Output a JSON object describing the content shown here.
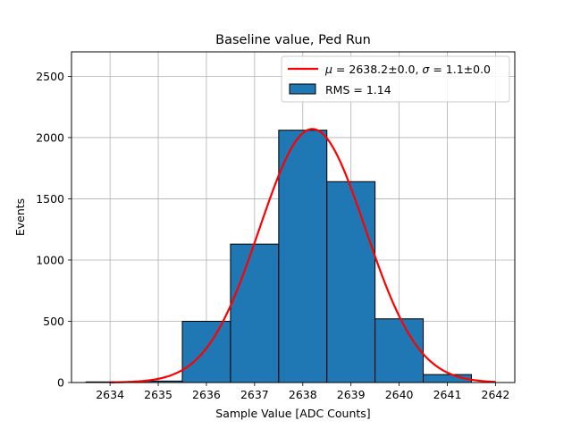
{
  "chart_data": {
    "type": "bar",
    "title": "Baseline value, Ped Run",
    "xlabel": "Sample Value [ADC Counts]",
    "ylabel": "Events",
    "xlim": [
      2633.2,
      2642.4
    ],
    "ylim": [
      0,
      2700
    ],
    "grid": true,
    "legend_position": "top-right",
    "x_ticks": [
      2634,
      2635,
      2636,
      2637,
      2638,
      2639,
      2640,
      2641,
      2642
    ],
    "y_ticks": [
      0,
      500,
      1000,
      1500,
      2000,
      2500
    ],
    "bins": [
      {
        "x0": 2633.5,
        "x1": 2634.5,
        "value": 5
      },
      {
        "x0": 2634.5,
        "x1": 2635.5,
        "value": 12
      },
      {
        "x0": 2635.5,
        "x1": 2636.5,
        "value": 500
      },
      {
        "x0": 2636.5,
        "x1": 2637.5,
        "value": 1130
      },
      {
        "x0": 2637.5,
        "x1": 2638.5,
        "value": 2060
      },
      {
        "x0": 2638.5,
        "x1": 2639.5,
        "value": 1640
      },
      {
        "x0": 2639.5,
        "x1": 2640.5,
        "value": 520
      },
      {
        "x0": 2640.5,
        "x1": 2641.5,
        "value": 65
      }
    ],
    "fit": {
      "mu": 2638.2,
      "sigma": 1.1,
      "amplitude": 2070,
      "x_start": 2634,
      "x_end": 2642
    },
    "series": [
      {
        "name": "RMS = 1.14",
        "kind": "histogram",
        "color": "#1f77b4",
        "edgecolor": "#000000"
      },
      {
        "name": "μ = 2638.2±0.0, σ = 1.1±0.0",
        "kind": "fit-line",
        "color": "#ff0000"
      }
    ],
    "legend": {
      "fit_label_mu": "μ",
      "fit_label_rest_1": " = 2638.2±0.0, ",
      "fit_label_sigma": "σ",
      "fit_label_rest_2": " = 1.1±0.0",
      "hist_label": "RMS = 1.14"
    }
  }
}
